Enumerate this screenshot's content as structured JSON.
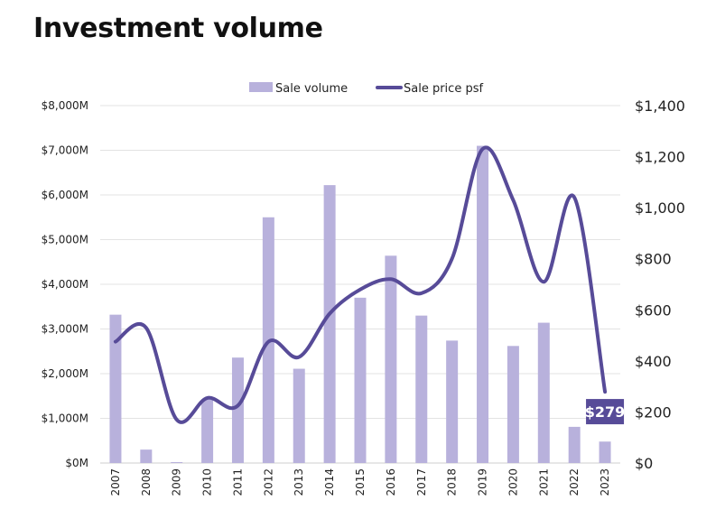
{
  "chart_data": {
    "type": "bar+line",
    "title": "Investment volume",
    "categories": [
      "2007",
      "2008",
      "2009",
      "2010",
      "2011",
      "2012",
      "2013",
      "2014",
      "2015",
      "2016",
      "2017",
      "2018",
      "2019",
      "2020",
      "2021",
      "2022",
      "2023"
    ],
    "series": [
      {
        "name": "Sale volume",
        "type": "bar",
        "axis": "left",
        "color": "#b8b1dc",
        "values": [
          3320,
          300,
          20,
          1430,
          2360,
          5500,
          2110,
          6220,
          3700,
          4640,
          3300,
          2740,
          7100,
          2620,
          3140,
          810,
          480
        ]
      },
      {
        "name": "Sale price psf",
        "type": "line",
        "axis": "right",
        "color": "#574b98",
        "values": [
          475,
          530,
          170,
          255,
          225,
          475,
          415,
          585,
          680,
          720,
          665,
          800,
          1230,
          1030,
          710,
          1040,
          279
        ]
      }
    ],
    "left_axis": {
      "ylim": [
        0,
        8000
      ],
      "ticks": [
        0,
        1000,
        2000,
        3000,
        4000,
        5000,
        6000,
        7000,
        8000
      ],
      "tick_labels": [
        "$0M",
        "$1,000M",
        "$2,000M",
        "$3,000M",
        "$4,000M",
        "$5,000M",
        "$6,000M",
        "$7,000M",
        "$8,000M"
      ]
    },
    "right_axis": {
      "ylim": [
        0,
        1400
      ],
      "ticks": [
        0,
        200,
        400,
        600,
        800,
        1000,
        1200,
        1400
      ],
      "tick_labels": [
        "$0",
        "$200",
        "$400",
        "$600",
        "$800",
        "$1,000",
        "$1,200",
        "$1,400"
      ]
    },
    "annotation": {
      "label": "$279",
      "series": "Sale price psf",
      "category": "2023",
      "color": "#574b98"
    },
    "legend": {
      "position": "top-center"
    },
    "grid": true
  }
}
